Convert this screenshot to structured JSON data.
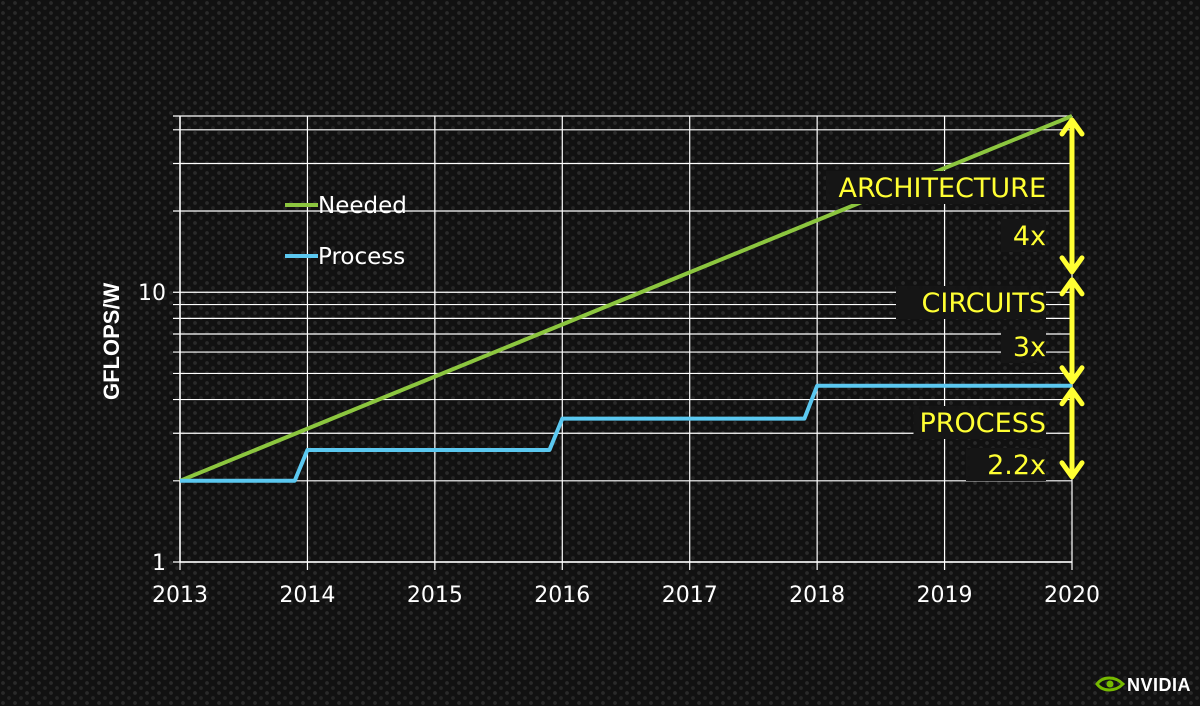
{
  "chart_data": {
    "type": "line",
    "title": "",
    "xlabel": "",
    "ylabel": "GFLOPS/W",
    "yscale": "log",
    "ylim": [
      1,
      45
    ],
    "xlim": [
      2013,
      2020
    ],
    "grid": true,
    "legend_position": "upper-left",
    "x_ticks": [
      "2013",
      "2014",
      "2015",
      "2016",
      "2017",
      "2018",
      "2019",
      "2020"
    ],
    "y_ticks": [
      "1",
      "10"
    ],
    "series": [
      {
        "name": "Needed",
        "color": "#8cc63f",
        "x": [
          2013,
          2020
        ],
        "y": [
          2,
          45
        ]
      },
      {
        "name": "Process",
        "color": "#5bc8f0",
        "x": [
          2013,
          2013.9,
          2014,
          2015.9,
          2016,
          2017.9,
          2018,
          2020
        ],
        "y": [
          2,
          2,
          2.6,
          2.6,
          3.4,
          3.4,
          4.5,
          4.5
        ]
      }
    ],
    "annotations": [
      {
        "lines": [
          "ARCHITECTURE",
          "4x"
        ],
        "from": 45,
        "to": 11.5
      },
      {
        "lines": [
          "CIRCUITS",
          "3x"
        ],
        "from": 11.5,
        "to": 4.5
      },
      {
        "lines": [
          "PROCESS",
          "2.2x"
        ],
        "from": 4.5,
        "to": 2
      }
    ],
    "annotation_color": "#ffff33"
  },
  "logo": {
    "text": "NVIDIA",
    "icon": "nvidia-eye-icon",
    "color": "#76b900"
  }
}
